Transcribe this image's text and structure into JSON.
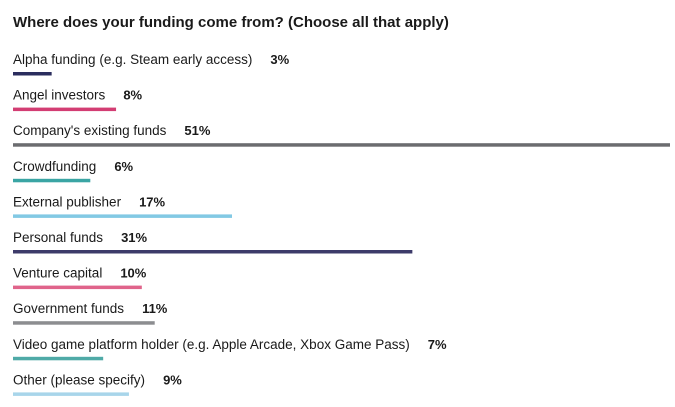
{
  "chart_data": {
    "type": "bar",
    "title": "Where does your funding come from? (Choose all that apply)",
    "categories": [
      "Alpha funding (e.g. Steam early access)",
      "Angel investors",
      "Company's existing funds",
      "Crowdfunding",
      "External publisher",
      "Personal funds",
      "Venture capital",
      "Government funds",
      "Video game platform holder (e.g. Apple Arcade, Xbox Game Pass)",
      "Other (please specify)"
    ],
    "values": [
      3,
      8,
      51,
      6,
      17,
      31,
      10,
      11,
      7,
      9
    ],
    "value_labels": [
      "3%",
      "8%",
      "51%",
      "6%",
      "17%",
      "31%",
      "10%",
      "11%",
      "7%",
      "9%"
    ],
    "colors": [
      "#2b2d5e",
      "#d33d73",
      "#6b6c6f",
      "#3aa5a4",
      "#82c9e4",
      "#3d3b6a",
      "#e0648b",
      "#8c8d90",
      "#4faaa7",
      "#a8d5ea"
    ]
  }
}
